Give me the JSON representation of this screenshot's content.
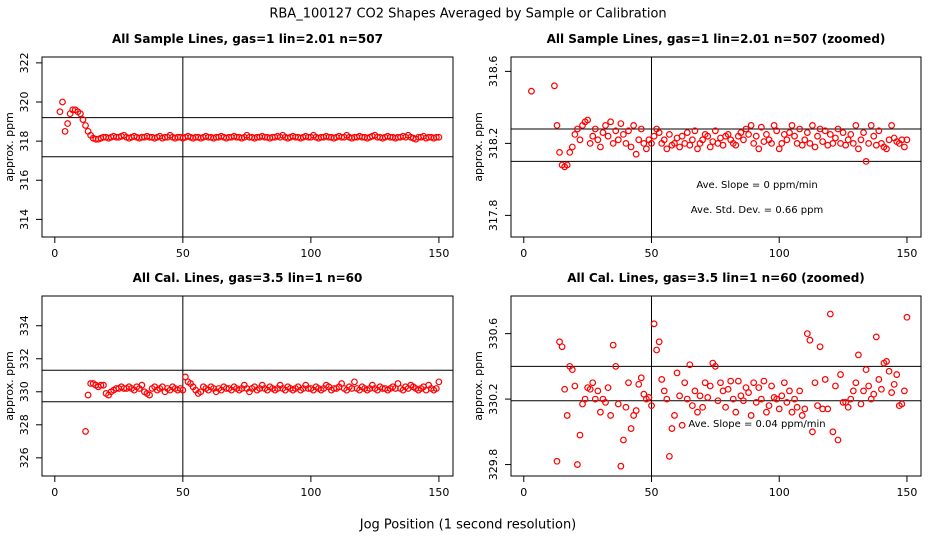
{
  "title": "RBA_100127  CO2 Shapes Averaged by Sample or Calibration",
  "x_label": "Jog Position (1 second resolution)",
  "chart_data": [
    {
      "type": "scatter",
      "title": "All Sample Lines, gas=1 lin=2.01 n=507",
      "y_label": "approx. ppm",
      "color": "#ff0000",
      "xlim": [
        -5,
        155.5
      ],
      "xticks": [
        0,
        50,
        100,
        150
      ],
      "ylim": [
        313.1,
        322.3
      ],
      "yticks": [
        314,
        316,
        318,
        320,
        322
      ],
      "vlines": [
        50
      ],
      "hlines": [
        319.2,
        317.2
      ],
      "annotations": [],
      "x": [
        2,
        3,
        4,
        5,
        6,
        7,
        8,
        9,
        10,
        11,
        12,
        13,
        14,
        15,
        16,
        17,
        18,
        19,
        20,
        21,
        22,
        23,
        24,
        25,
        26,
        27,
        28,
        29,
        30,
        31,
        32,
        33,
        34,
        35,
        36,
        37,
        38,
        39,
        40,
        41,
        42,
        43,
        44,
        45,
        46,
        47,
        48,
        49,
        50,
        51,
        52,
        53,
        54,
        55,
        56,
        57,
        58,
        59,
        60,
        61,
        62,
        63,
        64,
        65,
        66,
        67,
        68,
        69,
        70,
        71,
        72,
        73,
        74,
        75,
        76,
        77,
        78,
        79,
        80,
        81,
        82,
        83,
        84,
        85,
        86,
        87,
        88,
        89,
        90,
        91,
        92,
        93,
        94,
        95,
        96,
        97,
        98,
        99,
        100,
        101,
        102,
        103,
        104,
        105,
        106,
        107,
        108,
        109,
        110,
        111,
        112,
        113,
        114,
        115,
        116,
        117,
        118,
        119,
        120,
        121,
        122,
        123,
        124,
        125,
        126,
        127,
        128,
        129,
        130,
        131,
        132,
        133,
        134,
        135,
        136,
        137,
        138,
        139,
        140,
        141,
        142,
        143,
        144,
        145,
        146,
        147,
        148,
        149,
        150
      ],
      "values": [
        319.5,
        320.0,
        318.5,
        318.9,
        319.4,
        319.6,
        319.6,
        319.5,
        319.4,
        319.1,
        318.8,
        318.5,
        318.3,
        318.15,
        318.1,
        318.1,
        318.15,
        318.2,
        318.2,
        318.15,
        318.2,
        318.25,
        318.2,
        318.2,
        318.25,
        318.3,
        318.2,
        318.15,
        318.2,
        318.25,
        318.2,
        318.15,
        318.2,
        318.2,
        318.25,
        318.2,
        318.2,
        318.15,
        318.2,
        318.25,
        318.15,
        318.2,
        318.2,
        318.3,
        318.2,
        318.15,
        318.2,
        318.2,
        318.15,
        318.2,
        318.25,
        318.2,
        318.15,
        318.2,
        318.2,
        318.15,
        318.2,
        318.25,
        318.2,
        318.2,
        318.15,
        318.2,
        318.2,
        318.25,
        318.2,
        318.15,
        318.2,
        318.2,
        318.25,
        318.2,
        318.2,
        318.15,
        318.2,
        318.3,
        318.2,
        318.2,
        318.15,
        318.2,
        318.2,
        318.25,
        318.2,
        318.2,
        318.15,
        318.2,
        318.2,
        318.25,
        318.2,
        318.3,
        318.2,
        318.15,
        318.2,
        318.25,
        318.2,
        318.2,
        318.15,
        318.2,
        318.25,
        318.2,
        318.2,
        318.3,
        318.2,
        318.15,
        318.2,
        318.2,
        318.25,
        318.2,
        318.2,
        318.15,
        318.2,
        318.25,
        318.2,
        318.2,
        318.3,
        318.2,
        318.15,
        318.2,
        318.2,
        318.25,
        318.2,
        318.2,
        318.15,
        318.2,
        318.25,
        318.3,
        318.2,
        318.2,
        318.15,
        318.2,
        318.25,
        318.2,
        318.2,
        318.15,
        318.2,
        318.2,
        318.25,
        318.2,
        318.3,
        318.2,
        318.15,
        318.1,
        318.2,
        318.2,
        318.25,
        318.15,
        318.2,
        318.2,
        318.15,
        318.2,
        318.2
      ]
    },
    {
      "type": "scatter",
      "title": "All Sample Lines, gas=1 lin=2.01 n=507 (zoomed)",
      "y_label": "approx. ppm",
      "color": "#ff0000",
      "xlim": [
        -5,
        155.5
      ],
      "xticks": [
        0,
        50,
        100,
        150
      ],
      "ylim": [
        317.68,
        318.68
      ],
      "yticks": [
        317.8,
        318.2,
        318.6
      ],
      "vlines": [
        50
      ],
      "hlines": [
        318.28,
        318.1
      ],
      "annotations": [
        "Ave. Slope =  0  ppm/min",
        "Ave. Std. Dev. =  0.66  ppm"
      ],
      "x": [
        3,
        12,
        13,
        14,
        15,
        16,
        17,
        18,
        19,
        20,
        21,
        22,
        23,
        24,
        25,
        26,
        27,
        28,
        29,
        30,
        31,
        32,
        33,
        34,
        35,
        36,
        37,
        38,
        39,
        40,
        41,
        42,
        43,
        44,
        45,
        46,
        47,
        48,
        49,
        50,
        51,
        52,
        53,
        54,
        55,
        56,
        57,
        58,
        59,
        60,
        61,
        62,
        63,
        64,
        65,
        66,
        67,
        68,
        69,
        70,
        71,
        72,
        73,
        74,
        75,
        76,
        77,
        78,
        79,
        80,
        81,
        82,
        83,
        84,
        85,
        86,
        87,
        88,
        89,
        90,
        91,
        92,
        93,
        94,
        95,
        96,
        97,
        98,
        99,
        100,
        101,
        102,
        103,
        104,
        105,
        106,
        107,
        108,
        109,
        110,
        111,
        112,
        113,
        114,
        115,
        116,
        117,
        118,
        119,
        120,
        121,
        122,
        123,
        124,
        125,
        126,
        127,
        128,
        129,
        130,
        131,
        132,
        133,
        134,
        135,
        136,
        137,
        138,
        139,
        140,
        141,
        142,
        143,
        144,
        145,
        146,
        147,
        148,
        149,
        150
      ],
      "values": [
        318.49,
        318.52,
        318.3,
        318.15,
        318.08,
        318.07,
        318.08,
        318.15,
        318.18,
        318.25,
        318.28,
        318.22,
        318.3,
        318.32,
        318.33,
        318.2,
        318.24,
        318.28,
        318.22,
        318.18,
        318.26,
        318.3,
        318.24,
        318.32,
        318.2,
        318.27,
        318.22,
        318.31,
        318.25,
        318.2,
        318.27,
        318.18,
        318.3,
        318.14,
        318.22,
        318.28,
        318.2,
        318.17,
        318.22,
        318.2,
        318.24,
        318.28,
        318.26,
        318.2,
        318.22,
        318.17,
        318.25,
        318.19,
        318.2,
        318.23,
        318.18,
        318.24,
        318.2,
        318.26,
        318.19,
        318.22,
        318.27,
        318.17,
        318.2,
        318.22,
        318.25,
        318.24,
        318.18,
        318.21,
        318.27,
        318.2,
        318.23,
        318.19,
        318.24,
        318.25,
        318.22,
        318.2,
        318.19,
        318.24,
        318.26,
        318.22,
        318.28,
        318.25,
        318.3,
        318.2,
        318.24,
        318.17,
        318.29,
        318.21,
        318.25,
        318.22,
        318.2,
        318.3,
        318.27,
        318.17,
        318.2,
        318.25,
        318.22,
        318.26,
        318.3,
        318.24,
        318.2,
        318.28,
        318.19,
        318.22,
        318.26,
        318.2,
        318.3,
        318.18,
        318.24,
        318.28,
        318.21,
        318.27,
        318.19,
        318.25,
        318.2,
        318.23,
        318.28,
        318.2,
        318.26,
        318.19,
        318.22,
        318.25,
        318.2,
        318.3,
        318.17,
        318.22,
        318.26,
        318.1,
        318.2,
        318.3,
        318.24,
        318.19,
        318.27,
        318.2,
        318.18,
        318.17,
        318.22,
        318.3,
        318.23,
        318.21,
        318.2,
        318.22,
        318.18,
        318.22
      ]
    },
    {
      "type": "scatter",
      "title": "All Cal. Lines, gas=3.5 lin=1 n=60",
      "y_label": "approx. ppm",
      "color": "#ff0000",
      "xlim": [
        -5,
        155.5
      ],
      "xticks": [
        0,
        50,
        100,
        150
      ],
      "ylim": [
        324.9,
        335.8
      ],
      "yticks": [
        326,
        328,
        330,
        332,
        334
      ],
      "vlines": [
        50
      ],
      "hlines": [
        331.3,
        329.4
      ],
      "annotations": [],
      "x": [
        12,
        13,
        14,
        15,
        16,
        17,
        18,
        19,
        20,
        21,
        22,
        23,
        24,
        25,
        26,
        27,
        28,
        29,
        30,
        31,
        32,
        33,
        34,
        35,
        36,
        37,
        38,
        39,
        40,
        41,
        42,
        43,
        44,
        45,
        46,
        47,
        48,
        49,
        50,
        51,
        52,
        53,
        54,
        55,
        56,
        57,
        58,
        59,
        60,
        61,
        62,
        63,
        64,
        65,
        66,
        67,
        68,
        69,
        70,
        71,
        72,
        73,
        74,
        75,
        76,
        77,
        78,
        79,
        80,
        81,
        82,
        83,
        84,
        85,
        86,
        87,
        88,
        89,
        90,
        91,
        92,
        93,
        94,
        95,
        96,
        97,
        98,
        99,
        100,
        101,
        102,
        103,
        104,
        105,
        106,
        107,
        108,
        109,
        110,
        111,
        112,
        113,
        114,
        115,
        116,
        117,
        118,
        119,
        120,
        121,
        122,
        123,
        124,
        125,
        126,
        127,
        128,
        129,
        130,
        131,
        132,
        133,
        134,
        135,
        136,
        137,
        138,
        139,
        140,
        141,
        142,
        143,
        144,
        145,
        146,
        147,
        148,
        149,
        150
      ],
      "values": [
        327.6,
        329.8,
        330.5,
        330.5,
        330.4,
        330.3,
        330.4,
        330.4,
        329.9,
        329.8,
        330.0,
        330.1,
        330.2,
        330.2,
        330.3,
        330.2,
        330.2,
        330.3,
        330.2,
        330.1,
        330.3,
        330.2,
        330.4,
        330.0,
        329.9,
        329.8,
        330.2,
        330.3,
        330.1,
        330.2,
        330.3,
        330.0,
        330.2,
        330.1,
        330.3,
        330.2,
        330.1,
        330.2,
        330.1,
        330.9,
        330.6,
        330.5,
        330.3,
        330.1,
        329.9,
        330.0,
        330.3,
        330.2,
        330.1,
        330.3,
        330.2,
        330.0,
        330.2,
        330.1,
        330.3,
        330.2,
        330.2,
        330.1,
        330.3,
        330.2,
        330.1,
        330.2,
        330.4,
        330.2,
        330.0,
        330.2,
        330.3,
        330.1,
        330.2,
        330.4,
        330.2,
        330.1,
        330.3,
        330.2,
        330.1,
        330.2,
        330.4,
        330.2,
        330.1,
        330.3,
        330.2,
        330.1,
        330.2,
        330.3,
        330.1,
        330.2,
        330.4,
        330.2,
        330.2,
        330.1,
        330.3,
        330.2,
        330.1,
        330.2,
        330.4,
        330.3,
        330.1,
        330.2,
        330.2,
        330.3,
        330.5,
        330.2,
        330.1,
        330.3,
        330.2,
        330.6,
        330.2,
        330.1,
        330.3,
        330.2,
        330.1,
        330.2,
        330.4,
        330.2,
        330.1,
        330.3,
        330.2,
        330.2,
        330.1,
        330.2,
        330.3,
        330.2,
        330.5,
        330.2,
        330.1,
        330.3,
        330.2,
        330.4,
        330.3,
        330.2,
        330.1,
        330.2,
        330.3,
        330.1,
        330.4,
        330.2,
        330.1,
        330.2,
        330.6
      ]
    },
    {
      "type": "scatter",
      "title": "All Cal. Lines, gas=3.5 lin=1 n=60 (zoomed)",
      "y_label": "approx. ppm",
      "color": "#ff0000",
      "xlim": [
        -5,
        155.5
      ],
      "xticks": [
        0,
        50,
        100,
        150
      ],
      "ylim": [
        329.73,
        330.83
      ],
      "yticks": [
        329.8,
        330.2,
        330.6
      ],
      "vlines": [
        50
      ],
      "hlines": [
        330.4,
        330.19
      ],
      "annotations": [
        "Ave. Slope =  0.04  ppm/min"
      ],
      "x": [
        13,
        14,
        15,
        16,
        17,
        18,
        19,
        20,
        21,
        22,
        23,
        24,
        25,
        26,
        27,
        28,
        29,
        30,
        31,
        32,
        33,
        34,
        35,
        36,
        37,
        38,
        39,
        40,
        41,
        42,
        43,
        44,
        45,
        46,
        47,
        48,
        49,
        50,
        51,
        52,
        53,
        54,
        55,
        56,
        57,
        58,
        59,
        60,
        61,
        62,
        63,
        64,
        65,
        66,
        67,
        68,
        69,
        70,
        71,
        72,
        73,
        74,
        75,
        76,
        77,
        78,
        79,
        80,
        81,
        82,
        83,
        84,
        85,
        86,
        87,
        88,
        89,
        90,
        91,
        92,
        93,
        94,
        95,
        96,
        97,
        98,
        99,
        100,
        101,
        102,
        103,
        104,
        105,
        106,
        107,
        108,
        109,
        110,
        111,
        112,
        113,
        114,
        115,
        116,
        117,
        118,
        119,
        120,
        121,
        122,
        123,
        124,
        125,
        126,
        127,
        128,
        129,
        130,
        131,
        132,
        133,
        134,
        135,
        136,
        137,
        138,
        139,
        140,
        141,
        142,
        143,
        144,
        145,
        146,
        147,
        148,
        149,
        150
      ],
      "values": [
        329.82,
        330.55,
        330.52,
        330.26,
        330.1,
        330.4,
        330.38,
        330.28,
        329.8,
        329.98,
        330.17,
        330.2,
        330.27,
        330.26,
        330.3,
        330.2,
        330.25,
        330.12,
        330.2,
        330.18,
        330.27,
        330.1,
        330.53,
        330.4,
        330.17,
        329.79,
        329.95,
        330.15,
        330.3,
        330.02,
        330.1,
        330.13,
        330.29,
        330.33,
        330.23,
        330.2,
        330.21,
        330.16,
        330.66,
        330.5,
        330.55,
        330.32,
        330.25,
        330.2,
        329.85,
        330.02,
        330.1,
        330.36,
        330.22,
        330.04,
        330.3,
        330.2,
        330.41,
        330.16,
        330.25,
        330.12,
        330.22,
        330.15,
        330.3,
        330.21,
        330.28,
        330.42,
        330.4,
        330.19,
        330.3,
        330.25,
        330.15,
        330.26,
        330.31,
        330.2,
        330.12,
        330.31,
        330.22,
        330.19,
        330.27,
        330.24,
        330.1,
        330.3,
        330.18,
        330.27,
        330.2,
        330.31,
        330.12,
        330.16,
        330.28,
        330.21,
        330.2,
        330.14,
        330.22,
        330.3,
        330.18,
        330.25,
        330.12,
        330.2,
        330.15,
        330.25,
        330.1,
        330.14,
        330.6,
        330.56,
        330.0,
        330.3,
        330.16,
        330.52,
        330.14,
        330.32,
        330.14,
        330.72,
        330.0,
        330.28,
        329.95,
        330.35,
        330.18,
        330.18,
        330.15,
        330.2,
        330.25,
        330.3,
        330.47,
        330.17,
        330.25,
        330.38,
        330.28,
        330.2,
        330.23,
        330.58,
        330.32,
        330.26,
        330.42,
        330.43,
        330.37,
        330.24,
        330.29,
        330.35,
        330.16,
        330.17,
        330.25,
        330.7
      ]
    }
  ]
}
